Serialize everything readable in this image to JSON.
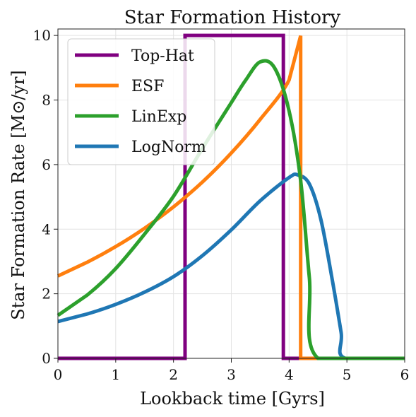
{
  "chart_data": {
    "type": "line",
    "title": "Star Formation History",
    "xlabel": "Lookback time [Gyrs]",
    "ylabel": "Star Formation Rate [M⊙/yr]",
    "xlim": [
      0,
      6
    ],
    "ylim": [
      0,
      10.2
    ],
    "xticks": [
      0,
      1,
      2,
      3,
      4,
      5,
      6
    ],
    "yticks": [
      0,
      2,
      4,
      6,
      8,
      10
    ],
    "grid": true,
    "legend_position": "top-left",
    "series": [
      {
        "name": "Top-Hat",
        "color": "#800080",
        "x": [
          0,
          2.2,
          2.2,
          3.9,
          3.9,
          6.0
        ],
        "y": [
          0,
          0,
          10,
          10,
          0,
          0
        ]
      },
      {
        "name": "ESF",
        "color": "#ff7f0e",
        "x": [
          0,
          0.5,
          1.0,
          1.5,
          2.0,
          2.5,
          3.0,
          3.5,
          4.0,
          4.2,
          4.2,
          6.0
        ],
        "y": [
          2.55,
          2.97,
          3.46,
          4.03,
          4.69,
          5.46,
          6.36,
          7.4,
          8.62,
          9.99,
          0,
          0
        ]
      },
      {
        "name": "LinExp",
        "color": "#2ca02c",
        "x": [
          0,
          0.5,
          1.0,
          1.5,
          2.0,
          2.5,
          3.0,
          3.25,
          3.5,
          3.75,
          4.0,
          4.2,
          4.35,
          4.5,
          6.0
        ],
        "y": [
          1.33,
          1.95,
          2.78,
          3.85,
          5.02,
          6.5,
          7.92,
          8.62,
          9.18,
          8.99,
          7.66,
          5.5,
          2.5,
          0,
          0
        ]
      },
      {
        "name": "LogNorm",
        "color": "#1f77b4",
        "x": [
          0,
          0.5,
          1.0,
          1.5,
          2.0,
          2.5,
          3.0,
          3.5,
          4.0,
          4.15,
          4.35,
          4.55,
          4.75,
          4.9,
          4.97,
          6.0
        ],
        "y": [
          1.14,
          1.37,
          1.67,
          2.05,
          2.53,
          3.18,
          3.98,
          4.88,
          5.6,
          5.68,
          5.4,
          4.3,
          2.4,
          0.8,
          0,
          0
        ]
      }
    ]
  }
}
